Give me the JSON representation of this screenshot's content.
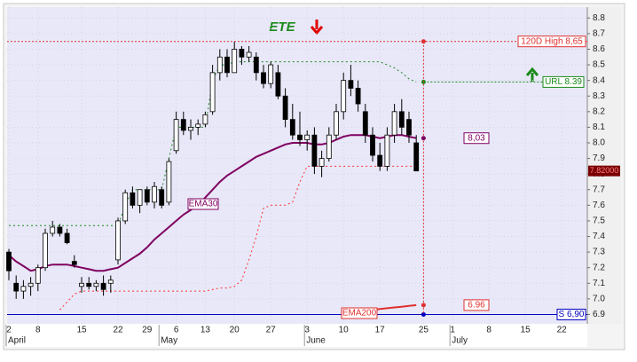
{
  "chart_data": {
    "type": "candlestick",
    "title": "ETE",
    "categories": [
      "2",
      null,
      null,
      null,
      "8",
      null,
      null,
      null,
      null,
      null,
      "15",
      null,
      null,
      null,
      null,
      "22",
      null,
      null,
      null,
      "29",
      null,
      null,
      null,
      "6",
      null,
      null,
      null,
      "13",
      null,
      null,
      null,
      "20",
      null,
      null,
      null,
      null,
      "27",
      null,
      null,
      null,
      null,
      "3",
      null,
      null,
      null,
      null,
      "10",
      null,
      null,
      null,
      null,
      "17",
      null,
      null,
      null,
      null,
      null,
      "25",
      null,
      null,
      null,
      "1",
      null,
      null,
      null,
      null,
      "8",
      null,
      null,
      null,
      null,
      "15",
      null,
      null,
      null,
      null,
      "22",
      null,
      null
    ],
    "months": [
      "April",
      null,
      null,
      null,
      null,
      null,
      null,
      null,
      null,
      null,
      null,
      null,
      null,
      null,
      null,
      null,
      null,
      null,
      null,
      null,
      null,
      "May",
      null,
      null,
      null,
      null,
      null,
      null,
      null,
      null,
      null,
      null,
      null,
      null,
      null,
      null,
      null,
      null,
      null,
      null,
      null,
      "June",
      null,
      null,
      null,
      null,
      null,
      null,
      null,
      null,
      null,
      null,
      null,
      null,
      null,
      null,
      null,
      null,
      null,
      null,
      null,
      "July",
      null,
      null,
      null,
      null,
      null,
      null,
      null,
      null,
      null,
      null,
      null,
      null,
      null,
      null,
      null,
      null,
      null
    ],
    "ohlc": {
      "up_color": "#ffffff",
      "down_color": "#000000",
      "open": [
        7.3,
        7.1,
        7.05,
        7.08,
        7.1,
        7.2,
        7.42,
        7.46,
        7.42,
        7.24,
        7.08,
        7.1,
        7.08,
        7.1,
        7.1,
        7.25,
        7.5,
        7.68,
        7.6,
        7.7,
        7.62,
        7.7,
        7.62,
        7.95,
        8.15,
        8.08,
        8.1,
        8.12,
        8.2,
        8.45,
        8.55,
        8.45,
        8.6,
        8.55,
        8.55,
        8.45,
        8.38,
        8.45,
        8.3,
        8.15,
        8.05,
        8.02,
        8.05,
        7.85,
        7.9,
        8.05,
        8.2,
        8.4,
        8.35,
        8.2,
        8.05,
        7.92,
        7.85,
        8.05,
        8.2,
        8.15,
        8.0,
        null,
        null,
        null,
        null,
        null,
        null,
        null,
        null,
        null,
        null,
        null,
        null,
        null,
        null,
        null,
        null,
        null,
        null,
        null,
        null,
        null,
        null
      ],
      "high": [
        7.32,
        7.15,
        7.12,
        7.14,
        7.22,
        7.45,
        7.5,
        7.48,
        7.45,
        7.28,
        7.14,
        7.14,
        7.12,
        7.15,
        7.15,
        7.52,
        7.7,
        7.72,
        7.7,
        7.72,
        7.75,
        7.72,
        7.9,
        8.2,
        8.2,
        8.15,
        8.15,
        8.2,
        8.5,
        8.6,
        8.6,
        8.65,
        8.62,
        8.62,
        8.58,
        8.5,
        8.52,
        8.5,
        8.35,
        8.25,
        8.2,
        8.08,
        8.1,
        7.95,
        8.1,
        8.25,
        8.45,
        8.5,
        8.4,
        8.25,
        8.1,
        8.0,
        8.1,
        8.25,
        8.28,
        8.2,
        8.05,
        null,
        null,
        null,
        null,
        null,
        null,
        null,
        null,
        null,
        null,
        null,
        null,
        null,
        null,
        null,
        null,
        null,
        null,
        null,
        null,
        null,
        null
      ],
      "low": [
        7.12,
        7.0,
        7.0,
        7.02,
        7.05,
        7.18,
        7.4,
        7.4,
        7.35,
        7.2,
        7.04,
        7.06,
        7.05,
        7.02,
        7.04,
        7.22,
        7.48,
        7.58,
        7.55,
        7.6,
        7.58,
        7.58,
        7.6,
        7.93,
        8.05,
        8.02,
        8.05,
        8.1,
        8.18,
        8.4,
        8.42,
        8.45,
        8.5,
        8.52,
        8.4,
        8.35,
        8.35,
        8.28,
        8.1,
        8.02,
        7.98,
        7.95,
        7.8,
        7.78,
        7.88,
        8.02,
        8.15,
        8.3,
        8.2,
        8.0,
        7.88,
        7.82,
        7.82,
        8.0,
        8.05,
        8.0,
        7.82,
        null,
        null,
        null,
        null,
        null,
        null,
        null,
        null,
        null,
        null,
        null,
        null,
        null,
        null,
        null,
        null,
        null,
        null,
        null,
        null,
        null,
        null
      ],
      "close": [
        7.18,
        7.05,
        7.08,
        7.1,
        7.2,
        7.42,
        7.46,
        7.42,
        7.36,
        7.22,
        7.1,
        7.08,
        7.1,
        7.06,
        7.12,
        7.5,
        7.68,
        7.6,
        7.7,
        7.62,
        7.72,
        7.6,
        7.88,
        8.15,
        8.08,
        8.1,
        8.12,
        8.18,
        8.45,
        8.55,
        8.45,
        8.6,
        8.55,
        8.58,
        8.45,
        8.38,
        8.5,
        8.3,
        8.15,
        8.05,
        8.02,
        8.05,
        7.85,
        7.9,
        8.05,
        8.2,
        8.4,
        8.35,
        8.25,
        8.05,
        7.92,
        7.85,
        8.05,
        8.2,
        8.1,
        8.05,
        7.82,
        null,
        null,
        null,
        null,
        null,
        null,
        null,
        null,
        null,
        null,
        null,
        null,
        null,
        null,
        null,
        null,
        null,
        null,
        null,
        null,
        null,
        null
      ],
      "close_label": "7.82000"
    },
    "lines": [
      {
        "name": "EMA30",
        "color": "#800060",
        "style": "solid",
        "value_label": "8,03",
        "values": [
          7.28,
          7.24,
          7.21,
          7.18,
          7.19,
          7.21,
          7.22,
          7.22,
          7.22,
          7.21,
          7.2,
          7.19,
          7.18,
          7.18,
          7.19,
          7.2,
          7.23,
          7.26,
          7.29,
          7.33,
          7.38,
          7.42,
          7.46,
          7.5,
          7.54,
          7.57,
          7.6,
          7.65,
          7.7,
          7.75,
          7.79,
          7.82,
          7.85,
          7.88,
          7.91,
          7.93,
          7.95,
          7.97,
          7.99,
          8.0,
          8.0,
          8.0,
          7.99,
          7.99,
          8.0,
          8.02,
          8.04,
          8.05,
          8.05,
          8.05,
          8.04,
          8.03,
          8.04,
          8.05,
          8.05,
          8.04,
          8.03,
          null,
          null,
          null,
          null,
          null,
          null,
          null,
          null,
          null,
          null,
          null,
          null,
          null,
          null,
          null,
          null,
          null,
          null,
          null,
          null,
          null,
          null
        ]
      },
      {
        "name": "EMA200",
        "color": "#e03030",
        "style": "solid",
        "value_label": "6.96",
        "values": [
          null,
          null,
          null,
          null,
          null,
          null,
          null,
          null,
          null,
          null,
          null,
          null,
          null,
          null,
          null,
          null,
          null,
          null,
          null,
          null,
          null,
          null,
          null,
          null,
          null,
          null,
          null,
          null,
          null,
          null,
          null,
          null,
          null,
          null,
          null,
          null,
          null,
          null,
          null,
          null,
          null,
          null,
          null,
          null,
          null,
          null,
          null,
          null,
          6.92,
          6.925,
          6.93,
          6.935,
          6.94,
          6.945,
          6.95,
          6.955,
          6.96,
          null,
          null,
          null,
          null,
          null,
          null,
          null,
          null,
          null,
          null,
          null,
          null,
          null,
          null,
          null,
          null,
          null,
          null,
          null,
          null,
          null,
          null
        ]
      },
      {
        "color": "#1a8a1a",
        "style": "dotted",
        "values": [
          7.47,
          7.47,
          7.47,
          7.47,
          7.47,
          7.47,
          7.47,
          7.47,
          7.47,
          7.47,
          7.47,
          7.47,
          7.47,
          7.47,
          7.47,
          7.47,
          7.6,
          7.7,
          7.7,
          7.7,
          7.7,
          7.7,
          7.9,
          8.1,
          8.1,
          8.1,
          8.1,
          8.1,
          8.4,
          8.5,
          8.5,
          8.52,
          8.52,
          8.52,
          8.52,
          8.52,
          8.52,
          8.52,
          8.52,
          8.52,
          8.52,
          8.52,
          8.52,
          8.52,
          8.52,
          8.52,
          8.52,
          8.52,
          8.52,
          8.52,
          8.52,
          8.52,
          8.5,
          8.48,
          8.45,
          8.41,
          8.39,
          null,
          null,
          null,
          null,
          null,
          null,
          null,
          null,
          null,
          null,
          null,
          null,
          null,
          null,
          null,
          null,
          null,
          null,
          null,
          null,
          null,
          null
        ]
      },
      {
        "color": "#ff3030",
        "style": "dotted",
        "values": [
          null,
          null,
          null,
          null,
          null,
          null,
          null,
          6.93,
          6.98,
          7.03,
          7.05,
          7.05,
          7.05,
          7.05,
          7.05,
          7.05,
          7.05,
          7.05,
          7.05,
          7.05,
          7.05,
          7.05,
          7.05,
          7.05,
          7.05,
          7.05,
          7.05,
          7.05,
          7.06,
          7.07,
          7.07,
          7.08,
          7.12,
          7.25,
          7.4,
          7.58,
          7.6,
          7.6,
          7.6,
          7.62,
          7.75,
          7.85,
          7.85,
          7.85,
          7.85,
          7.85,
          7.85,
          7.85,
          7.85,
          7.85,
          7.85,
          7.85,
          7.85,
          7.85,
          7.85,
          7.85,
          7.85,
          null,
          null,
          null,
          null,
          null,
          null,
          null,
          null,
          null,
          null,
          null,
          null,
          null,
          null,
          null,
          null,
          null,
          null,
          null,
          null,
          null,
          null
        ]
      }
    ],
    "levels": [
      {
        "label": "120D High 8,65",
        "value": 8.65,
        "color": "#e03030"
      },
      {
        "label": "URL 8.39",
        "value": 8.39,
        "color": "#1a8a1a"
      },
      {
        "label": "S 6,90",
        "value": 6.9,
        "color": "#0000c0"
      }
    ],
    "ylim": [
      6.84,
      8.87
    ],
    "yticks": [
      6.9,
      {
        "value": 7,
        "label": "7.0"
      },
      7.1,
      7.2,
      7.3,
      7.4,
      7.5,
      7.6,
      7.7,
      7.8,
      7.9,
      {
        "value": 8,
        "label": "8.0"
      },
      8.1,
      8.2,
      8.3,
      8.4,
      8.5,
      8.6,
      8.7,
      8.8
    ],
    "grid": true
  }
}
